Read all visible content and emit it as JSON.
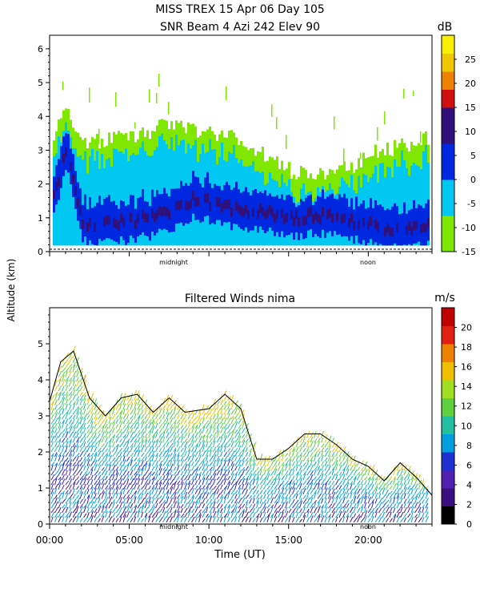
{
  "figure": {
    "title_line1": "MISS TREX    15 Apr 06 Day 105",
    "title_line2": "SNR Beam 4 Azi 242 Elev 90",
    "shared_ylabel": "Altitude (km)"
  },
  "colors": {
    "snr": [
      "#80e800",
      "#00c8f0",
      "#0028e0",
      "#30107a",
      "#1a0a5a",
      "#d01010",
      "#f08000",
      "#f0c800",
      "#f8f000"
    ],
    "wind": [
      "#000000",
      "#3a1080",
      "#5020b0",
      "#2030d0",
      "#00a0e0",
      "#20c0a0",
      "#60d040",
      "#f0c000",
      "#f08000",
      "#e02010",
      "#c00000"
    ],
    "contour": "#000000"
  },
  "chart_data": [
    {
      "type": "heatmap",
      "title": "SNR Beam 4 Azi 242 Elev 90",
      "ylabel": "Altitude (km)",
      "ylim": [
        0,
        6.4
      ],
      "yticks": [
        0,
        1,
        2,
        3,
        4,
        5,
        6
      ],
      "xlim": [
        0,
        24
      ],
      "x_markers": [
        "midnight",
        "noon"
      ],
      "colorbar": {
        "unit": "dB",
        "range": [
          -15,
          30
        ],
        "tick_labels": [
          "-15",
          "-10",
          "-5",
          "0",
          "5",
          "10",
          "15",
          "20",
          "25"
        ]
      },
      "layer_tops_km": [
        {
          "x": 0.0,
          "top": 3.4,
          "core": 1.2
        },
        {
          "x": 1.0,
          "top": 4.1,
          "core": 3.1
        },
        {
          "x": 2.0,
          "top": 3.2,
          "core": 0.9
        },
        {
          "x": 3.0,
          "top": 3.3,
          "core": 0.8
        },
        {
          "x": 5.0,
          "top": 3.4,
          "core": 0.9
        },
        {
          "x": 7.0,
          "top": 3.7,
          "core": 1.1
        },
        {
          "x": 9.0,
          "top": 3.6,
          "core": 1.6
        },
        {
          "x": 11.0,
          "top": 3.5,
          "core": 1.3
        },
        {
          "x": 13.0,
          "top": 3.0,
          "core": 1.2
        },
        {
          "x": 15.0,
          "top": 2.4,
          "core": 1.0
        },
        {
          "x": 17.0,
          "top": 2.3,
          "core": 1.1
        },
        {
          "x": 19.0,
          "top": 2.5,
          "core": 0.9
        },
        {
          "x": 20.0,
          "top": 3.0,
          "core": 0.8
        },
        {
          "x": 22.0,
          "top": 3.1,
          "core": 0.7
        },
        {
          "x": 24.0,
          "top": 3.4,
          "core": 0.9
        }
      ]
    },
    {
      "type": "scatter",
      "title": "Filtered Winds nima",
      "ylabel": "Altitude (km)",
      "xlabel": "Time (UT)",
      "ylim": [
        0,
        6
      ],
      "yticks": [
        0,
        1,
        2,
        3,
        4,
        5
      ],
      "xlim": [
        0,
        24
      ],
      "xticks": [
        "00:00",
        "05:00",
        "10:00",
        "15:00",
        "20:00"
      ],
      "x_markers": [
        "midnight",
        "noon"
      ],
      "colorbar": {
        "unit": "m/s",
        "range": [
          0,
          22
        ],
        "tick_labels": [
          "0",
          "2",
          "4",
          "6",
          "8",
          "10",
          "12",
          "14",
          "16",
          "18",
          "20"
        ]
      },
      "data_top_km": [
        {
          "x": 0.0,
          "top": 3.4
        },
        {
          "x": 0.7,
          "top": 4.5
        },
        {
          "x": 1.5,
          "top": 4.8
        },
        {
          "x": 2.5,
          "top": 3.5
        },
        {
          "x": 3.5,
          "top": 3.0
        },
        {
          "x": 4.5,
          "top": 3.5
        },
        {
          "x": 5.5,
          "top": 3.6
        },
        {
          "x": 6.5,
          "top": 3.1
        },
        {
          "x": 7.5,
          "top": 3.5
        },
        {
          "x": 8.5,
          "top": 3.1
        },
        {
          "x": 10.0,
          "top": 3.2
        },
        {
          "x": 11.0,
          "top": 3.6
        },
        {
          "x": 12.0,
          "top": 3.2
        },
        {
          "x": 13.0,
          "top": 1.8
        },
        {
          "x": 14.0,
          "top": 1.8
        },
        {
          "x": 15.0,
          "top": 2.1
        },
        {
          "x": 16.0,
          "top": 2.5
        },
        {
          "x": 17.0,
          "top": 2.5
        },
        {
          "x": 18.0,
          "top": 2.2
        },
        {
          "x": 19.0,
          "top": 1.8
        },
        {
          "x": 20.0,
          "top": 1.6
        },
        {
          "x": 21.0,
          "top": 1.2
        },
        {
          "x": 22.0,
          "top": 1.7
        },
        {
          "x": 23.0,
          "top": 1.3
        },
        {
          "x": 24.0,
          "top": 0.8
        }
      ]
    }
  ]
}
